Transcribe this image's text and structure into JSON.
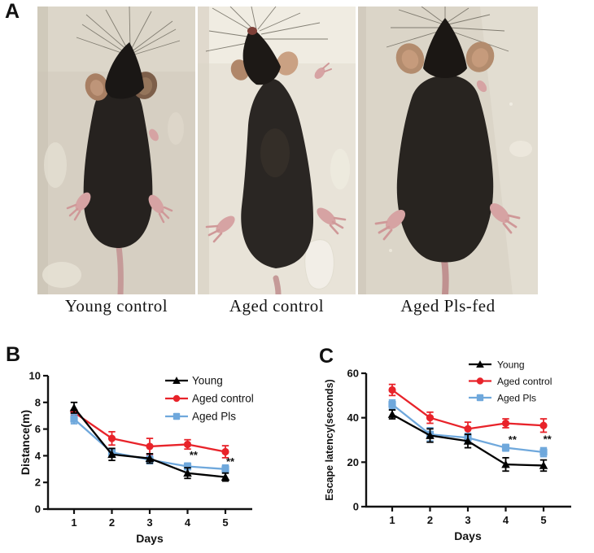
{
  "panels": {
    "a": {
      "label": "A",
      "photos": [
        {
          "caption": "Young control"
        },
        {
          "caption": "Aged control"
        },
        {
          "caption": "Aged Pls-fed"
        }
      ]
    },
    "b": {
      "label": "B"
    },
    "c": {
      "label": "C"
    }
  },
  "colors": {
    "young": "#000000",
    "aged_control": "#e8232a",
    "aged_pls": "#6fa8dc",
    "axis": "#111111"
  },
  "chart_data": [
    {
      "panel": "B",
      "type": "line",
      "title": "",
      "xlabel": "Days",
      "ylabel": "Distance(m)",
      "x": [
        1,
        2,
        3,
        4,
        5
      ],
      "ylim": [
        0,
        10
      ],
      "yticks": [
        0,
        2,
        4,
        6,
        8,
        10
      ],
      "grid": false,
      "legend_position": "top-right-inside",
      "legend": [
        "Young",
        "Aged control",
        "Aged Pls"
      ],
      "series": [
        {
          "name": "Young",
          "marker": "triangle",
          "color": "#000000",
          "values": [
            7.6,
            4.1,
            3.8,
            2.7,
            2.4
          ],
          "errors": [
            0.4,
            0.45,
            0.35,
            0.4,
            0.3
          ]
        },
        {
          "name": "Aged control",
          "marker": "circle",
          "color": "#e8232a",
          "values": [
            7.25,
            5.3,
            4.7,
            4.85,
            4.3
          ],
          "errors": [
            0.2,
            0.5,
            0.6,
            0.35,
            0.45
          ]
        },
        {
          "name": "Aged Pls",
          "marker": "square",
          "color": "#6fa8dc",
          "values": [
            6.75,
            4.25,
            3.7,
            3.2,
            3.0
          ],
          "errors": [
            0.35,
            0.3,
            0.3,
            0.25,
            0.3
          ]
        }
      ],
      "annotations": [
        {
          "label": "**",
          "x": 4.16,
          "y": 3.78
        },
        {
          "label": "**",
          "x": 5.13,
          "y": 3.28
        }
      ]
    },
    {
      "panel": "C",
      "type": "line",
      "title": "",
      "xlabel": "Days",
      "ylabel": "Escape latency(seconds)",
      "x": [
        1,
        2,
        3,
        4,
        5
      ],
      "ylim": [
        0,
        60
      ],
      "yticks": [
        0,
        20,
        40,
        60
      ],
      "grid": false,
      "legend_position": "top-right-inside",
      "legend": [
        "Young",
        "Aged control",
        "Aged Pls"
      ],
      "series": [
        {
          "name": "Young",
          "marker": "triangle",
          "color": "#000000",
          "values": [
            41.5,
            32,
            29.5,
            19,
            18.5
          ],
          "errors": [
            2,
            3,
            3,
            3,
            2.5
          ]
        },
        {
          "name": "Aged control",
          "marker": "circle",
          "color": "#e8232a",
          "values": [
            52.5,
            40,
            35,
            37.5,
            36.5
          ],
          "errors": [
            2.5,
            2.5,
            3,
            2,
            3
          ]
        },
        {
          "name": "Aged Pls",
          "marker": "square",
          "color": "#6fa8dc",
          "values": [
            46,
            32.5,
            31,
            26.5,
            24.5
          ],
          "errors": [
            2,
            3,
            2,
            1.5,
            2
          ]
        }
      ],
      "annotations": [
        {
          "label": "**",
          "x": 4.18,
          "y": 28.5
        },
        {
          "label": "**",
          "x": 5.1,
          "y": 28.8
        }
      ]
    }
  ]
}
